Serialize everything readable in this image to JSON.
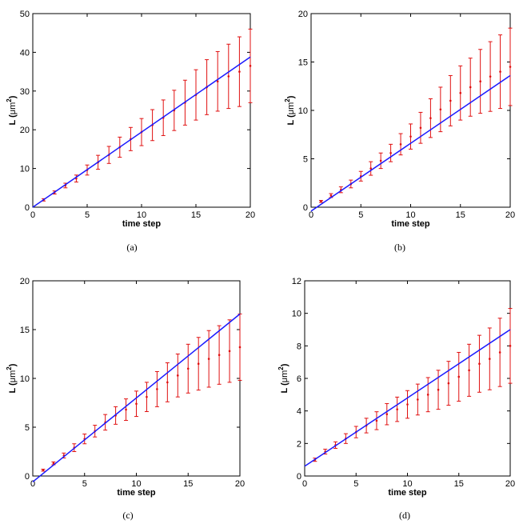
{
  "figure": {
    "panel_count": 4
  },
  "chart_data": [
    {
      "type": "scatter",
      "caption": "(a)",
      "xlabel": "time step",
      "ylabel_prefix": "L (",
      "ylabel_unit": "μm",
      "ylabel_sup": "2",
      "ylabel_suffix": ")",
      "xlim": [
        0,
        20
      ],
      "ylim": [
        0,
        50
      ],
      "xticks": [
        0,
        5,
        10,
        15,
        20
      ],
      "yticks": [
        0,
        10,
        20,
        30,
        40,
        50
      ],
      "series": [
        {
          "name": "data",
          "color": "#e01010",
          "x": [
            1,
            2,
            3,
            4,
            5,
            6,
            7,
            8,
            9,
            10,
            11,
            12,
            13,
            14,
            15,
            16,
            17,
            18,
            19,
            20
          ],
          "y": [
            1.9,
            3.8,
            5.6,
            7.4,
            9.6,
            11.6,
            13.5,
            15.5,
            17.6,
            19.4,
            21.2,
            23.1,
            25.0,
            27.0,
            29.0,
            31.0,
            32.5,
            33.8,
            35.0,
            36.5
          ],
          "err": [
            0.3,
            0.4,
            0.6,
            0.9,
            1.3,
            1.8,
            2.2,
            2.6,
            3.0,
            3.5,
            4.0,
            4.6,
            5.2,
            5.8,
            6.5,
            7.1,
            7.7,
            8.3,
            9.0,
            9.5
          ]
        },
        {
          "name": "fit",
          "color": "#1a1aff",
          "x": [
            0,
            20
          ],
          "y": [
            0,
            38.8
          ]
        }
      ]
    },
    {
      "type": "scatter",
      "caption": "(b)",
      "xlabel": "time step",
      "ylabel_prefix": "L (",
      "ylabel_unit": "μm",
      "ylabel_sup": "2",
      "ylabel_suffix": ")",
      "xlim": [
        0,
        20
      ],
      "ylim": [
        0,
        20
      ],
      "xticks": [
        0,
        5,
        10,
        15,
        20
      ],
      "yticks": [
        0,
        5,
        10,
        15,
        20
      ],
      "series": [
        {
          "name": "data",
          "color": "#e01010",
          "x": [
            1,
            2,
            3,
            4,
            5,
            6,
            7,
            8,
            9,
            10,
            11,
            12,
            13,
            14,
            15,
            16,
            17,
            18,
            19,
            20
          ],
          "y": [
            0.6,
            1.2,
            1.8,
            2.4,
            3.2,
            4.0,
            4.8,
            5.6,
            6.5,
            7.3,
            8.2,
            9.2,
            10.1,
            11.0,
            11.8,
            12.4,
            13.0,
            13.5,
            14.0,
            14.5
          ],
          "err": [
            0.1,
            0.2,
            0.3,
            0.4,
            0.5,
            0.7,
            0.8,
            0.9,
            1.1,
            1.3,
            1.6,
            2.0,
            2.3,
            2.6,
            2.8,
            3.0,
            3.3,
            3.6,
            3.8,
            4.0
          ]
        },
        {
          "name": "fit",
          "color": "#1a1aff",
          "x": [
            0,
            20
          ],
          "y": [
            -0.4,
            13.6
          ]
        }
      ]
    },
    {
      "type": "scatter",
      "caption": "(c)",
      "xlabel": "time step",
      "ylabel_prefix": "L (",
      "ylabel_unit": "μm",
      "ylabel_sup": "2",
      "ylabel_suffix": ")",
      "xlim": [
        0,
        20
      ],
      "ylim": [
        0,
        20
      ],
      "xticks": [
        0,
        5,
        10,
        15,
        20
      ],
      "yticks": [
        0,
        5,
        10,
        15,
        20
      ],
      "series": [
        {
          "name": "data",
          "color": "#e01010",
          "x": [
            1,
            2,
            3,
            4,
            5,
            6,
            7,
            8,
            9,
            10,
            11,
            12,
            13,
            14,
            15,
            16,
            17,
            18,
            19,
            20
          ],
          "y": [
            0.6,
            1.3,
            2.1,
            2.9,
            3.8,
            4.6,
            5.5,
            6.2,
            6.8,
            7.4,
            8.1,
            8.9,
            9.6,
            10.3,
            11.0,
            11.5,
            12.0,
            12.4,
            12.8,
            13.2
          ],
          "err": [
            0.1,
            0.15,
            0.25,
            0.4,
            0.5,
            0.6,
            0.8,
            0.9,
            1.1,
            1.3,
            1.5,
            1.8,
            2.0,
            2.2,
            2.5,
            2.7,
            2.9,
            3.0,
            3.2,
            3.4
          ]
        },
        {
          "name": "fit",
          "color": "#1a1aff",
          "x": [
            0,
            20
          ],
          "y": [
            -0.6,
            16.6
          ]
        }
      ]
    },
    {
      "type": "scatter",
      "caption": "(d)",
      "xlabel": "time step",
      "ylabel_prefix": "L (",
      "ylabel_unit": "μm",
      "ylabel_sup": "2",
      "ylabel_suffix": ")",
      "xlim": [
        0,
        20
      ],
      "ylim": [
        0,
        12
      ],
      "xticks": [
        0,
        5,
        10,
        15,
        20
      ],
      "yticks": [
        0,
        2,
        4,
        6,
        8,
        10,
        12
      ],
      "series": [
        {
          "name": "data",
          "color": "#e01010",
          "x": [
            1,
            2,
            3,
            4,
            5,
            6,
            7,
            8,
            9,
            10,
            11,
            12,
            13,
            14,
            15,
            16,
            17,
            18,
            19,
            20
          ],
          "y": [
            1.0,
            1.5,
            1.9,
            2.3,
            2.7,
            3.1,
            3.4,
            3.8,
            4.1,
            4.4,
            4.7,
            5.0,
            5.3,
            5.7,
            6.1,
            6.5,
            6.9,
            7.2,
            7.6,
            8.0
          ],
          "err": [
            0.1,
            0.15,
            0.2,
            0.3,
            0.35,
            0.45,
            0.55,
            0.65,
            0.75,
            0.85,
            0.95,
            1.05,
            1.2,
            1.35,
            1.5,
            1.6,
            1.75,
            1.9,
            2.1,
            2.3
          ]
        },
        {
          "name": "fit",
          "color": "#1a1aff",
          "x": [
            0,
            20
          ],
          "y": [
            0.6,
            9.0
          ]
        }
      ]
    }
  ]
}
